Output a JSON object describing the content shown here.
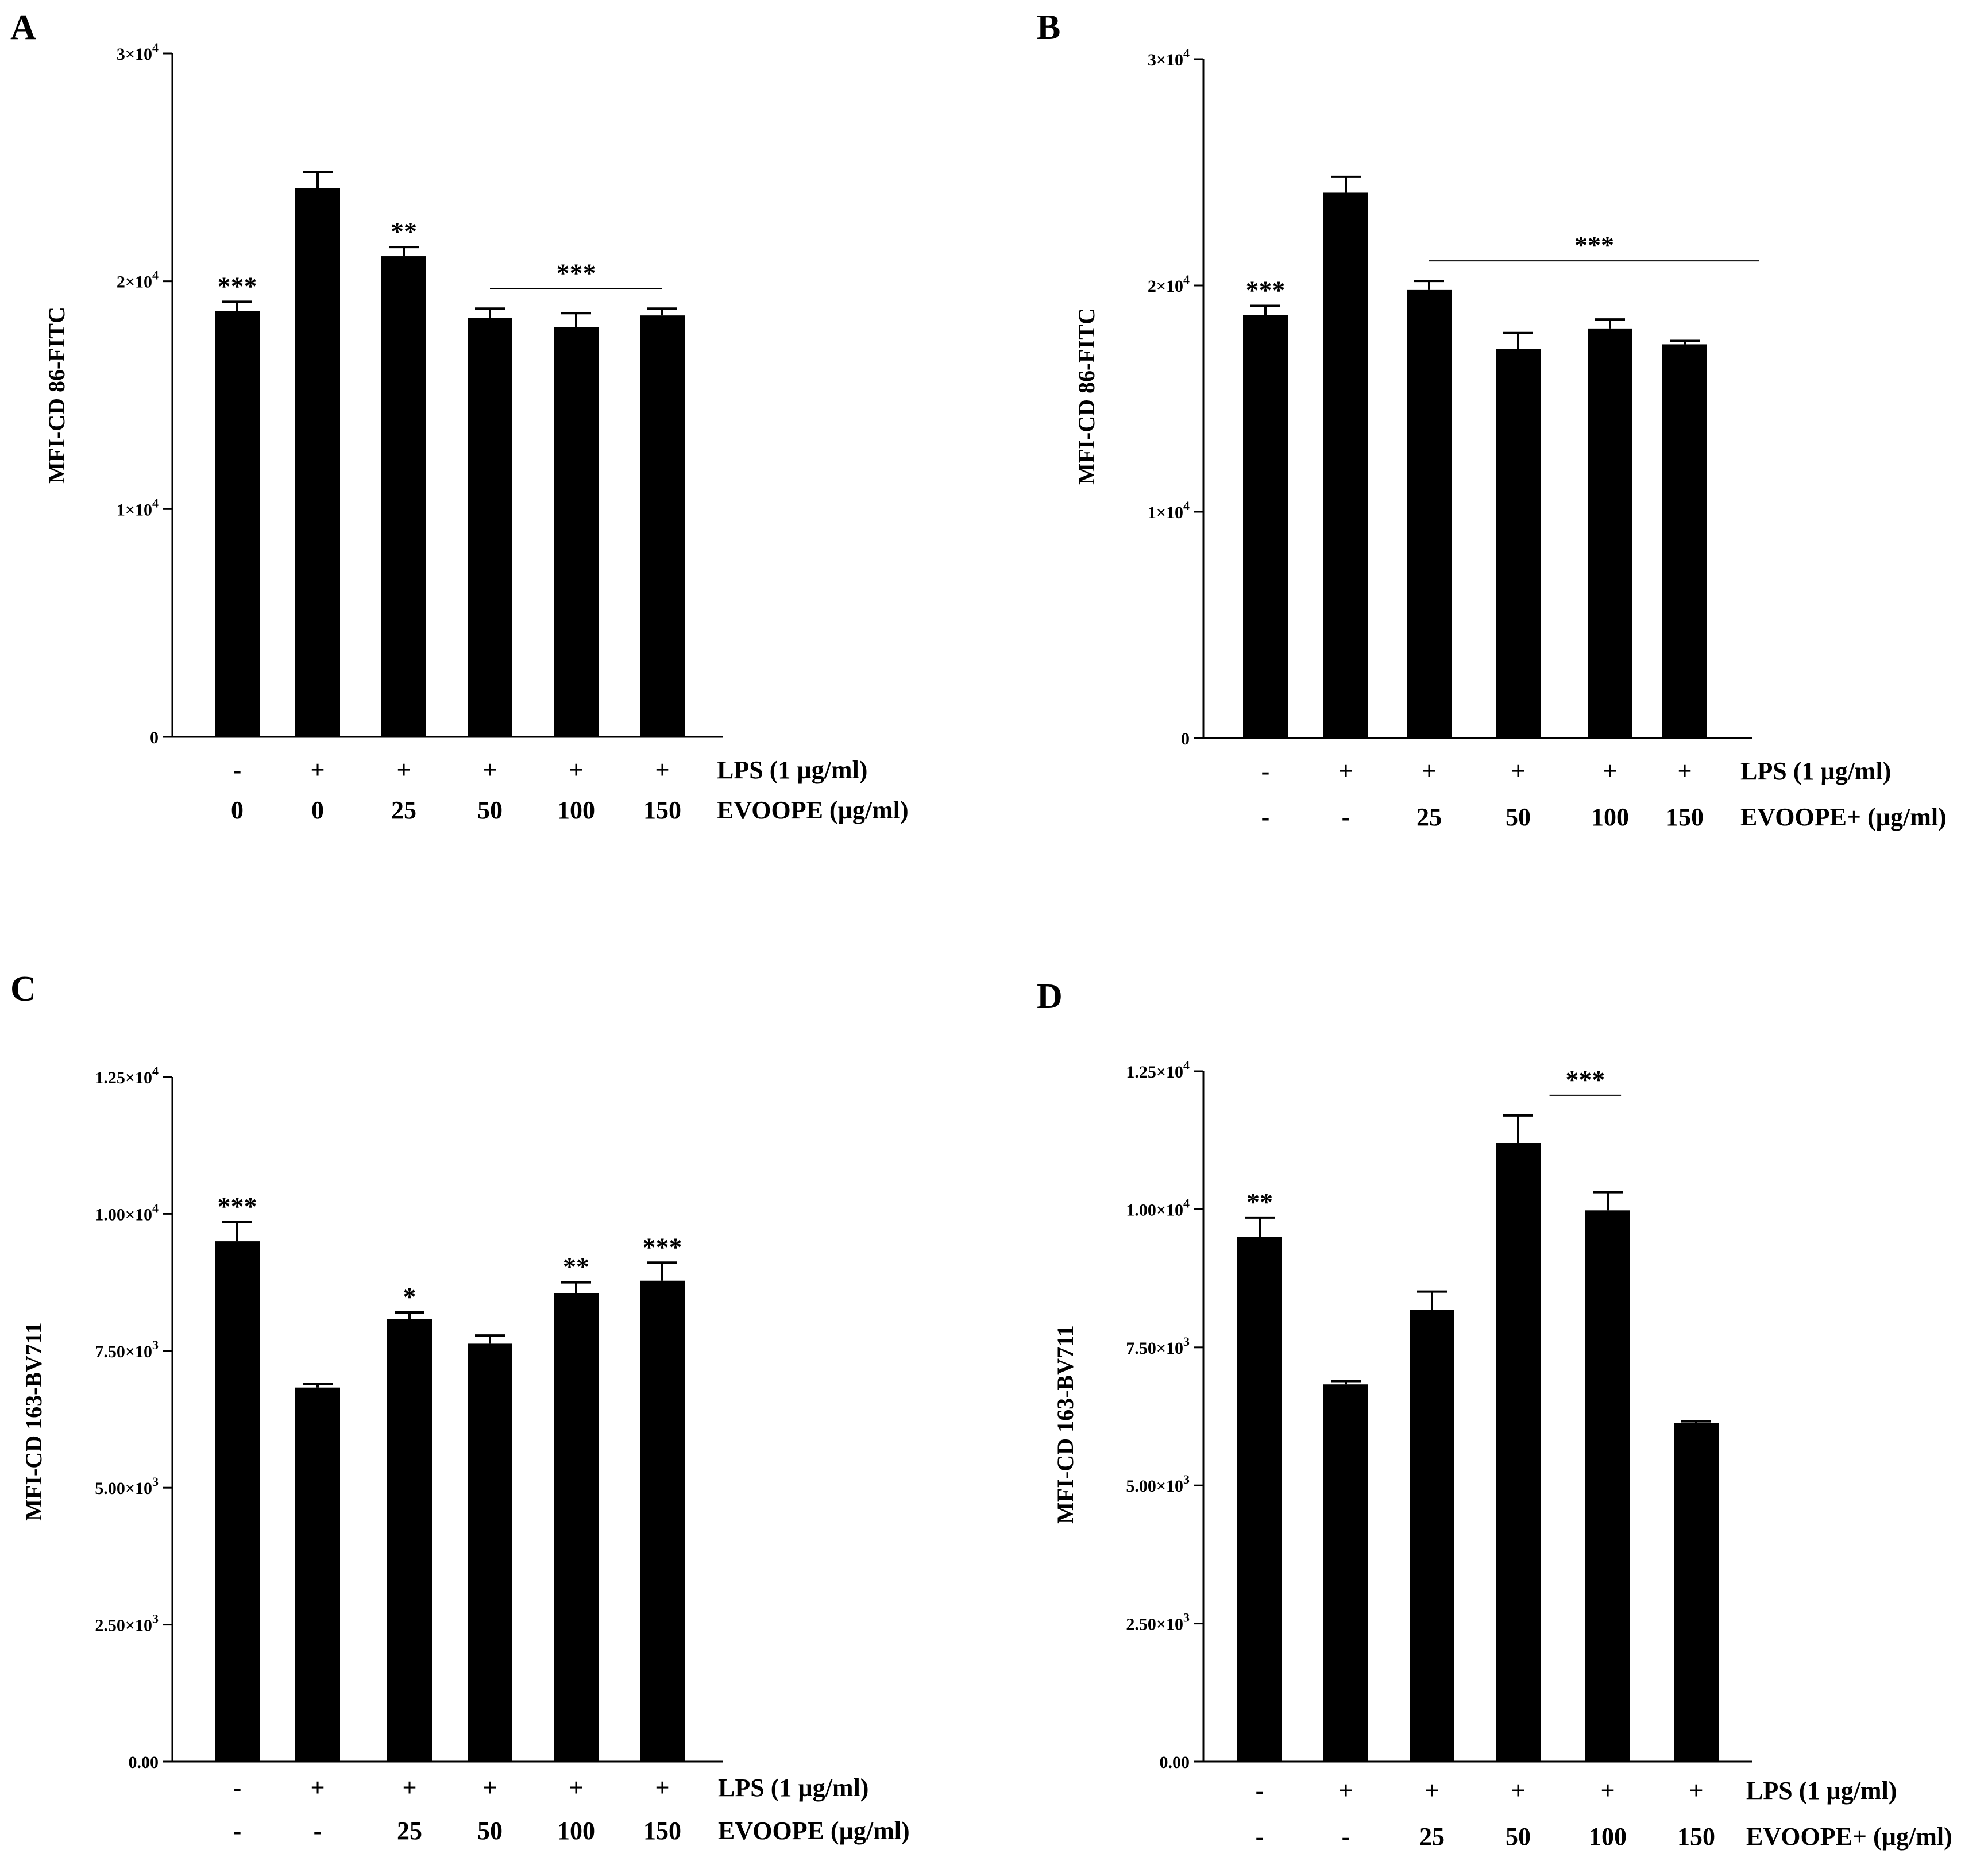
{
  "chart_data": [
    {
      "panel": "A",
      "type": "bar",
      "ylabel": "MFI-CD 86-FITC",
      "ylim": [
        0,
        30000
      ],
      "yticks": [
        0,
        10000,
        20000,
        30000
      ],
      "ytick_labels": [
        {
          "main": "0",
          "sup": ""
        },
        {
          "main": "1×10",
          "sup": "4"
        },
        {
          "main": "2×10",
          "sup": "4"
        },
        {
          "main": "3×10",
          "sup": "4"
        }
      ],
      "lps_row": [
        "-",
        "+",
        "+",
        "+",
        "+",
        "+"
      ],
      "lps_label": "LPS (1 µg/ml)",
      "dose_row": [
        "0",
        "0",
        "25",
        "50",
        "100",
        "150"
      ],
      "dose_label": "EVOOPE (µg/ml)",
      "values": [
        18700,
        24100,
        21100,
        18400,
        18000,
        18500
      ],
      "errors": [
        400,
        700,
        400,
        400,
        600,
        300
      ],
      "bar_sig": [
        "***",
        "",
        "**",
        "",
        "",
        ""
      ],
      "brackets": [
        {
          "from": 3,
          "to": 5,
          "label": "***"
        }
      ]
    },
    {
      "panel": "B",
      "type": "bar",
      "ylabel": "MFI-CD 86-FITC",
      "ylim": [
        0,
        30000
      ],
      "yticks": [
        0,
        10000,
        20000,
        30000
      ],
      "ytick_labels": [
        {
          "main": "0",
          "sup": ""
        },
        {
          "main": "1×10",
          "sup": "4"
        },
        {
          "main": "2×10",
          "sup": "4"
        },
        {
          "main": "3×10",
          "sup": "4"
        }
      ],
      "lps_row": [
        "-",
        "+",
        "+",
        "+",
        "+",
        "+"
      ],
      "lps_label": "LPS (1 µg/ml)",
      "dose_row": [
        "-",
        "-",
        "25",
        "50",
        "100",
        "150"
      ],
      "dose_label": "EVOOPE+ (µg/ml)",
      "values": [
        18700,
        24100,
        19800,
        17200,
        18100,
        17400
      ],
      "errors": [
        400,
        700,
        400,
        700,
        400,
        150
      ],
      "bar_sig": [
        "***",
        "",
        "",
        "",
        "",
        ""
      ],
      "brackets": [
        {
          "from": 2,
          "to": 6,
          "label": "***"
        }
      ]
    },
    {
      "panel": "C",
      "type": "bar",
      "ylabel": "MFI-CD 163-BV711",
      "ylim": [
        0,
        12500
      ],
      "yticks": [
        0,
        2500,
        5000,
        7500,
        10000,
        12500
      ],
      "ytick_labels": [
        {
          "main": "0.00",
          "sup": ""
        },
        {
          "main": "2.50×10",
          "sup": "3"
        },
        {
          "main": "5.00×10",
          "sup": "3"
        },
        {
          "main": "7.50×10",
          "sup": "3"
        },
        {
          "main": "1.00×10",
          "sup": "4"
        },
        {
          "main": "1.25×10",
          "sup": "4"
        }
      ],
      "lps_row": [
        "-",
        "+",
        "+",
        "+",
        "+",
        "+"
      ],
      "lps_label": "LPS (1 µg/ml)",
      "dose_row": [
        "-",
        "-",
        "25",
        "50",
        "100",
        "150"
      ],
      "dose_label": "EVOOPE (µg/ml)",
      "values": [
        9500,
        6830,
        8080,
        7630,
        8550,
        8780
      ],
      "errors": [
        350,
        60,
        120,
        150,
        200,
        330
      ],
      "bar_sig": [
        "***",
        "",
        "*",
        "",
        "**",
        "***"
      ],
      "brackets": []
    },
    {
      "panel": "D",
      "type": "bar",
      "ylabel": "MFI-CD 163-BV711",
      "ylim": [
        0,
        12500
      ],
      "yticks": [
        0,
        2500,
        5000,
        7500,
        10000,
        12500
      ],
      "ytick_labels": [
        {
          "main": "0.00",
          "sup": ""
        },
        {
          "main": "2.50×10",
          "sup": "3"
        },
        {
          "main": "5.00×10",
          "sup": "3"
        },
        {
          "main": "7.50×10",
          "sup": "3"
        },
        {
          "main": "1.00×10",
          "sup": "4"
        },
        {
          "main": "1.25×10",
          "sup": "4"
        }
      ],
      "lps_row": [
        "-",
        "+",
        "+",
        "+",
        "+",
        "+"
      ],
      "lps_label": "LPS (1 µg/ml)",
      "dose_row": [
        "-",
        "-",
        "25",
        "50",
        "100",
        "150"
      ],
      "dose_label": "EVOOPE+ (µg/ml)",
      "values": [
        9500,
        6830,
        8180,
        11200,
        9980,
        6130
      ],
      "errors": [
        350,
        60,
        330,
        500,
        330,
        30
      ],
      "bar_sig": [
        "**",
        "",
        "",
        "",
        "",
        ""
      ],
      "brackets": [
        {
          "from": 3.35,
          "to": 4.15,
          "label": "***"
        }
      ]
    }
  ]
}
